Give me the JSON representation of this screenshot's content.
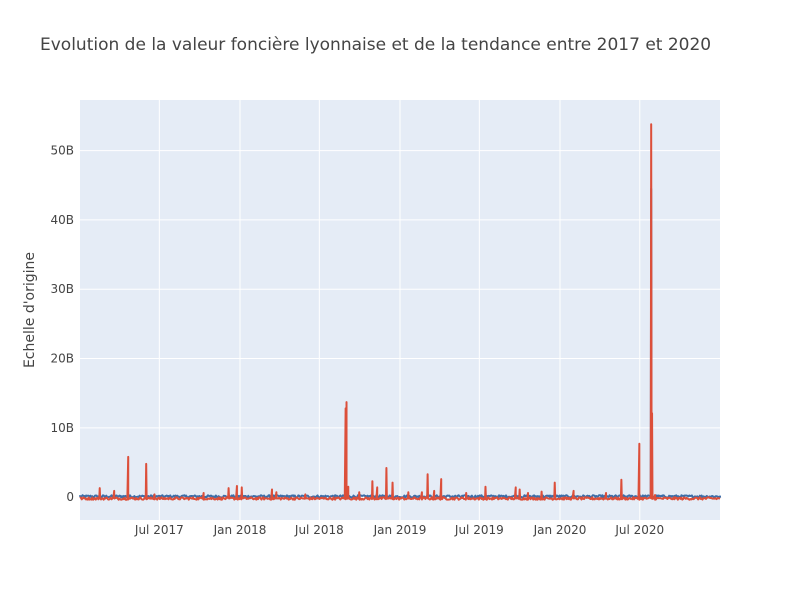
{
  "chart_data": {
    "type": "line",
    "title": "Evolution de la valeur foncière lyonnaise et de la tendance entre 2017 et 2020",
    "xlabel": "",
    "ylabel": "Echelle d'origine",
    "xlim": [
      "2017-01-01",
      "2020-12-31"
    ],
    "ylim": [
      -3.3,
      57.3
    ],
    "y_unit": "B",
    "grid": true,
    "legend": "none",
    "x_ticks": [
      {
        "value": "2017-07-01",
        "label": "Jul 2017"
      },
      {
        "value": "2018-01-01",
        "label": "Jan 2018"
      },
      {
        "value": "2018-07-01",
        "label": "Jul 2018"
      },
      {
        "value": "2019-01-01",
        "label": "Jan 2019"
      },
      {
        "value": "2019-07-01",
        "label": "Jul 2019"
      },
      {
        "value": "2020-01-01",
        "label": "Jan 2020"
      },
      {
        "value": "2020-07-01",
        "label": "Jul 2020"
      }
    ],
    "y_ticks": [
      {
        "value": 0,
        "label": "0"
      },
      {
        "value": 10,
        "label": "10B"
      },
      {
        "value": 20,
        "label": "20B"
      },
      {
        "value": 30,
        "label": "30B"
      },
      {
        "value": 40,
        "label": "40B"
      },
      {
        "value": 50,
        "label": "50B"
      }
    ],
    "series": [
      {
        "color": "#3d6ea8",
        "baseline": 0.1,
        "points": [
          [
            "2017-01-01",
            0.1
          ],
          [
            "2017-06-01",
            0.2
          ],
          [
            "2018-01-01",
            0.1
          ],
          [
            "2018-08-01",
            0.2
          ],
          [
            "2019-04-01",
            0.1
          ],
          [
            "2019-10-01",
            0.2
          ],
          [
            "2020-03-01",
            0.1
          ],
          [
            "2020-07-01",
            0.3
          ],
          [
            "2020-07-27",
            44.5
          ],
          [
            "2020-07-29",
            0.3
          ],
          [
            "2020-12-31",
            0.1
          ]
        ]
      },
      {
        "color": "#dc4f3a",
        "baseline": -0.2,
        "points": [
          [
            "2017-02-15",
            1.3
          ],
          [
            "2017-03-20",
            0.9
          ],
          [
            "2017-04-21",
            5.8
          ],
          [
            "2017-06-01",
            4.8
          ],
          [
            "2017-06-20",
            0.4
          ],
          [
            "2017-10-10",
            0.6
          ],
          [
            "2017-12-06",
            1.3
          ],
          [
            "2017-12-25",
            1.6
          ],
          [
            "2018-01-05",
            1.4
          ],
          [
            "2018-03-15",
            1.1
          ],
          [
            "2018-03-25",
            0.7
          ],
          [
            "2018-05-30",
            0.4
          ],
          [
            "2018-08-30",
            12.8
          ],
          [
            "2018-09-01",
            13.7
          ],
          [
            "2018-09-05",
            1.5
          ],
          [
            "2018-09-30",
            0.7
          ],
          [
            "2018-10-30",
            2.3
          ],
          [
            "2018-11-10",
            1.4
          ],
          [
            "2018-12-01",
            4.2
          ],
          [
            "2018-12-15",
            2.1
          ],
          [
            "2019-01-20",
            0.7
          ],
          [
            "2019-02-20",
            0.7
          ],
          [
            "2019-03-05",
            3.3
          ],
          [
            "2019-03-20",
            0.9
          ],
          [
            "2019-04-05",
            2.6
          ],
          [
            "2019-06-01",
            0.6
          ],
          [
            "2019-07-15",
            1.5
          ],
          [
            "2019-09-22",
            1.4
          ],
          [
            "2019-10-01",
            1.1
          ],
          [
            "2019-10-20",
            0.6
          ],
          [
            "2019-11-20",
            0.8
          ],
          [
            "2019-12-20",
            2.1
          ],
          [
            "2020-02-01",
            0.9
          ],
          [
            "2020-04-15",
            0.6
          ],
          [
            "2020-05-20",
            2.5
          ],
          [
            "2020-06-30",
            7.7
          ],
          [
            "2020-07-27",
            53.8
          ],
          [
            "2020-07-29",
            12.1
          ],
          [
            "2020-08-05",
            0.3
          ]
        ]
      }
    ]
  }
}
